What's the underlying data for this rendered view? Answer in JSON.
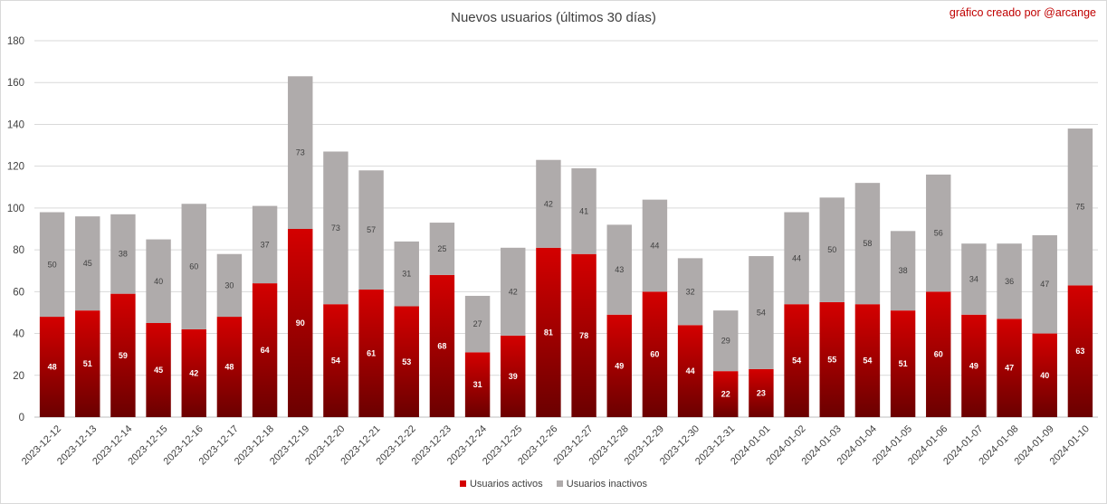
{
  "header": {
    "title": "Nuevos usuarios (últimos 30 días)",
    "credit": "gráfico creado por @arcange"
  },
  "colors": {
    "activos_top": "#d40000",
    "activos_bottom": "#6b0000",
    "inactivos": "#afabab",
    "grid": "#d9d9d9"
  },
  "chart_data": {
    "type": "bar",
    "stacked": true,
    "title": "Nuevos usuarios (últimos 30 días)",
    "xlabel": "",
    "ylabel": "",
    "ylim": [
      0,
      180
    ],
    "yticks": [
      0,
      20,
      40,
      60,
      80,
      100,
      120,
      140,
      160,
      180
    ],
    "grid": true,
    "legend_position": "bottom",
    "categories": [
      "2023-12-12",
      "2023-12-13",
      "2023-12-14",
      "2023-12-15",
      "2023-12-16",
      "2023-12-17",
      "2023-12-18",
      "2023-12-19",
      "2023-12-20",
      "2023-12-21",
      "2023-12-22",
      "2023-12-23",
      "2023-12-24",
      "2023-12-25",
      "2023-12-26",
      "2023-12-27",
      "2023-12-28",
      "2023-12-29",
      "2023-12-30",
      "2023-12-31",
      "2024-01-01",
      "2024-01-02",
      "2024-01-03",
      "2024-01-04",
      "2024-01-05",
      "2024-01-06",
      "2024-01-07",
      "2024-01-08",
      "2024-01-09",
      "2024-01-10"
    ],
    "series": [
      {
        "name": "Usuarios activos",
        "values": [
          48,
          51,
          59,
          45,
          42,
          48,
          64,
          90,
          54,
          61,
          53,
          68,
          31,
          39,
          81,
          78,
          49,
          60,
          44,
          22,
          23,
          54,
          55,
          54,
          51,
          60,
          49,
          47,
          40,
          63
        ]
      },
      {
        "name": "Usuarios inactivos",
        "values": [
          50,
          45,
          38,
          40,
          60,
          30,
          37,
          73,
          73,
          57,
          31,
          25,
          27,
          42,
          42,
          41,
          43,
          44,
          32,
          29,
          54,
          44,
          50,
          58,
          38,
          56,
          34,
          36,
          47,
          75
        ]
      }
    ]
  }
}
